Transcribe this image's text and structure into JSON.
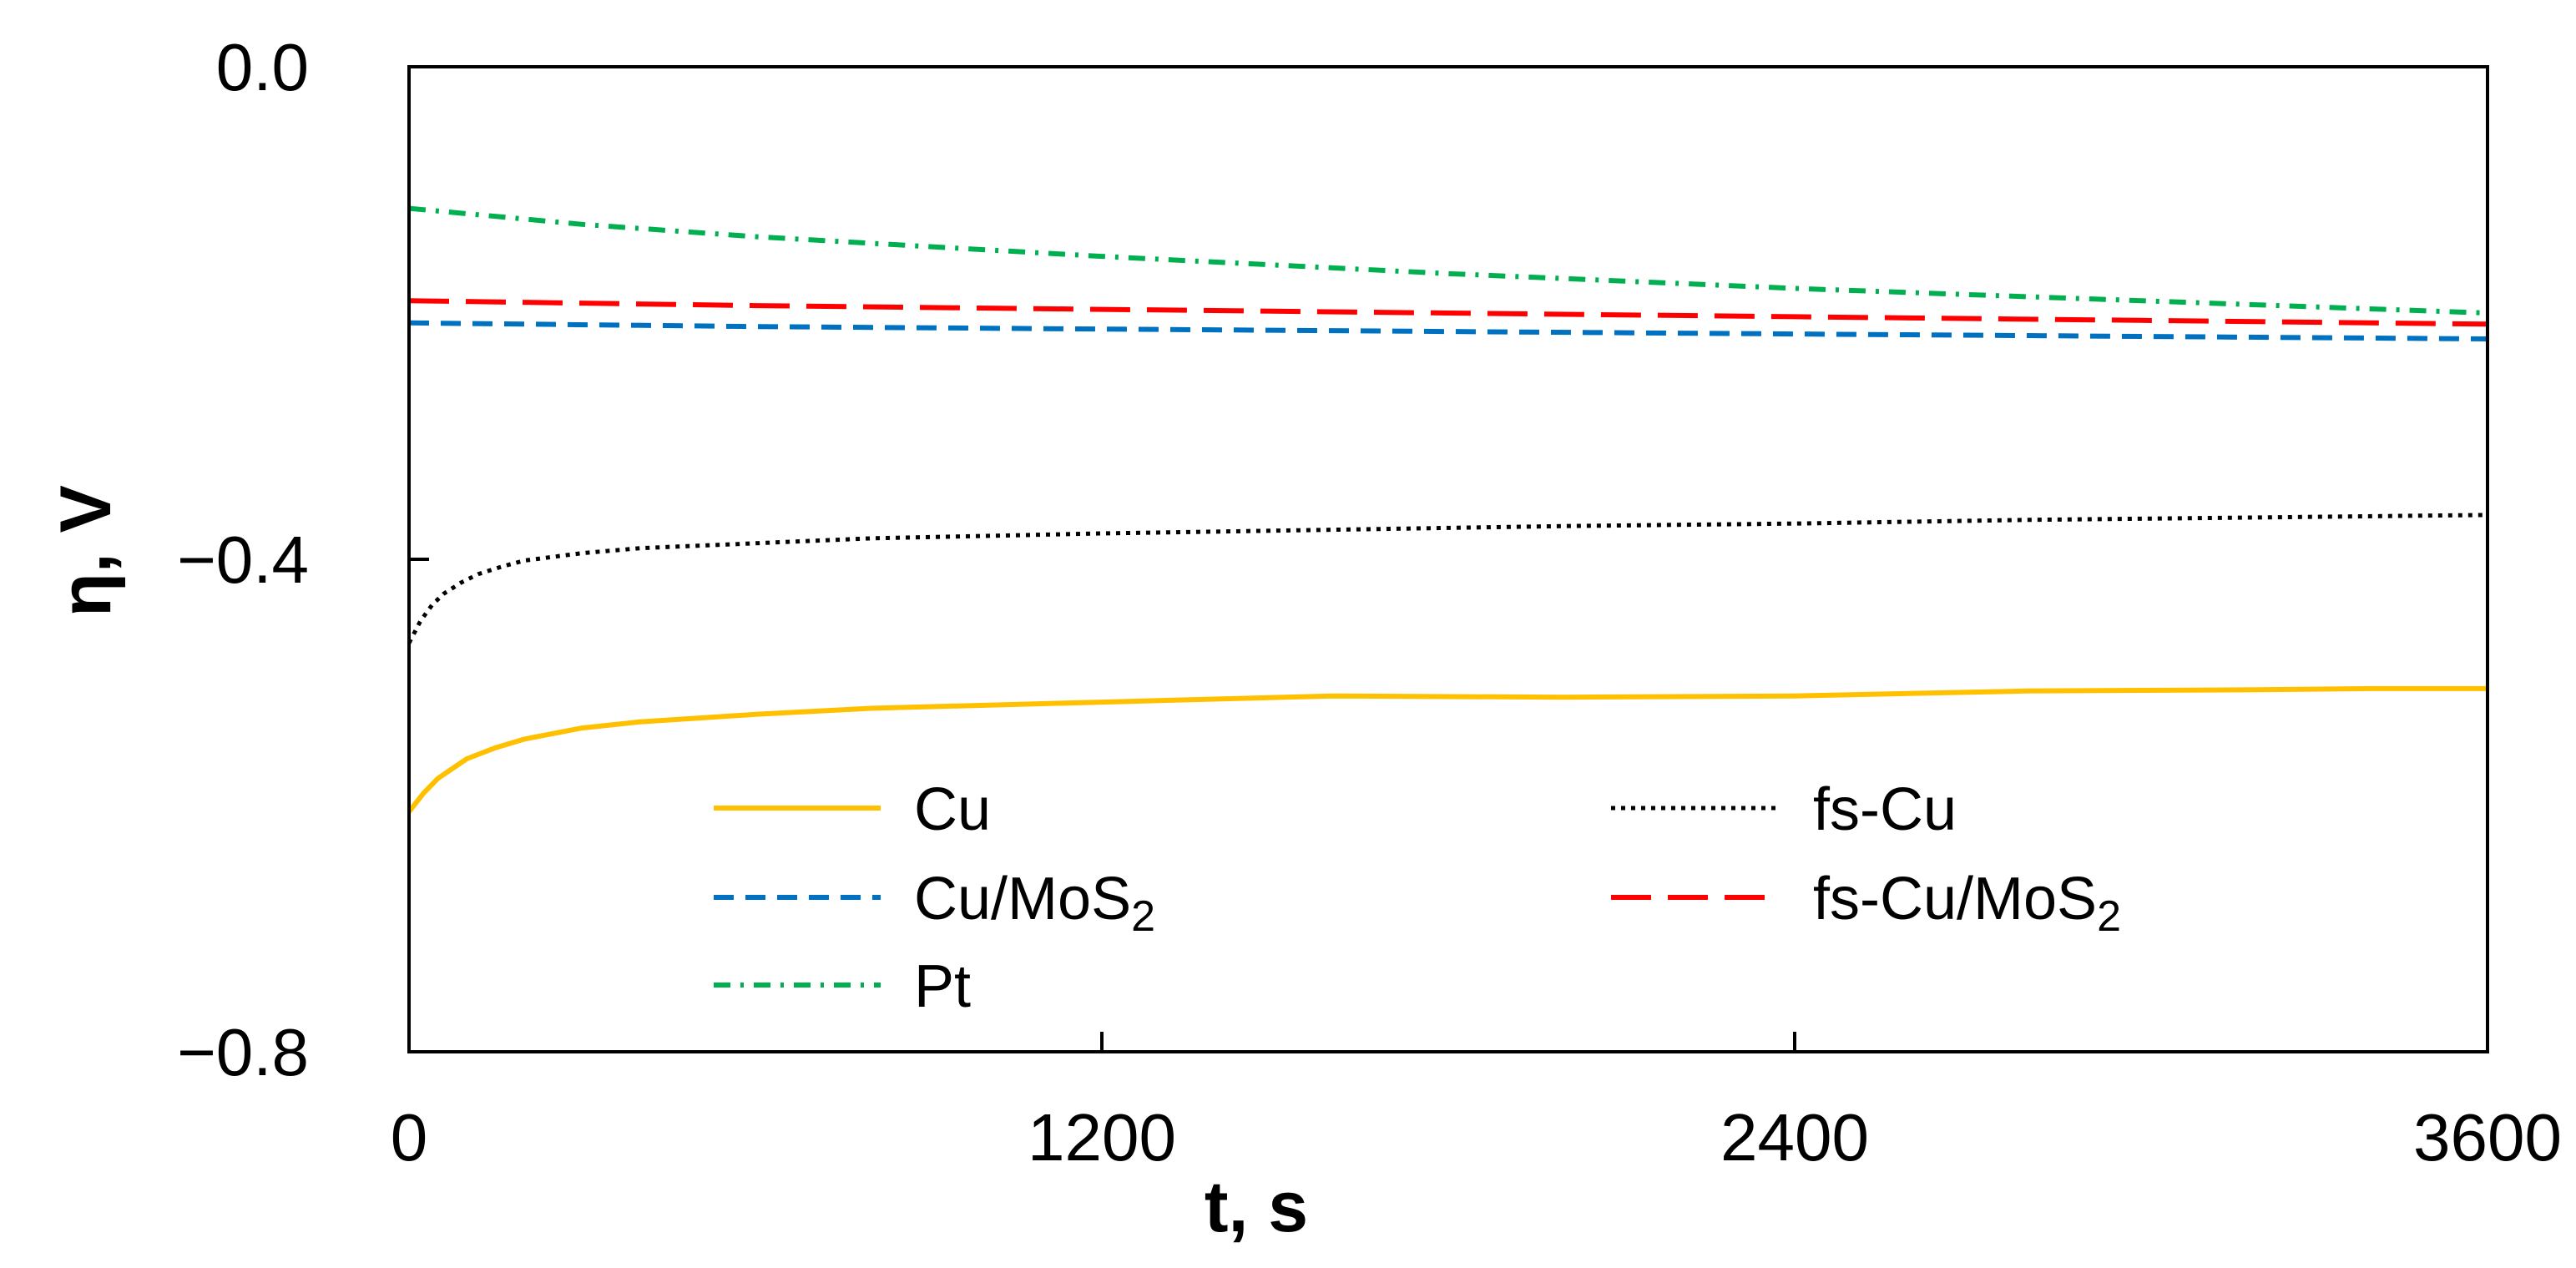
{
  "chart_data": {
    "type": "line",
    "title": "",
    "xlabel": "t, s",
    "ylabel": "η, V",
    "xlim": [
      0,
      3600
    ],
    "ylim": [
      -0.8,
      0.0
    ],
    "xticks": [
      {
        "value": 0,
        "label": "0"
      },
      {
        "value": 1200,
        "label": "1200"
      },
      {
        "value": 2400,
        "label": "2400"
      },
      {
        "value": 3600,
        "label": "3600"
      }
    ],
    "yticks": [
      {
        "value": 0.0,
        "label": "0.0"
      },
      {
        "value": -0.4,
        "label": "−0.4"
      },
      {
        "value": -0.8,
        "label": "−0.8"
      }
    ],
    "grid": false,
    "legend_position": "bottom",
    "series": [
      {
        "name": "Cu",
        "label_main": "Cu",
        "label_sub": "",
        "color": "#FFC000",
        "style": "solid",
        "x": [
          0,
          25,
          50,
          100,
          150,
          200,
          300,
          400,
          600,
          800,
          1200,
          1600,
          2000,
          2400,
          2800,
          3200,
          3400,
          3600
        ],
        "y": [
          -0.605,
          -0.59,
          -0.578,
          -0.562,
          -0.553,
          -0.546,
          -0.537,
          -0.532,
          -0.526,
          -0.521,
          -0.516,
          -0.511,
          -0.512,
          -0.511,
          -0.507,
          -0.506,
          -0.505,
          -0.505
        ]
      },
      {
        "name": "Cu/MoS2",
        "label_main": "Cu/MoS",
        "label_sub": "2",
        "color": "#0070C0",
        "style": "dashed",
        "x": [
          0,
          600,
          1200,
          1800,
          2400,
          3000,
          3600
        ],
        "y": [
          -0.208,
          -0.211,
          -0.213,
          -0.215,
          -0.217,
          -0.219,
          -0.221
        ]
      },
      {
        "name": "Pt",
        "label_main": "Pt",
        "label_sub": "",
        "color": "#00B050",
        "style": "dashdot",
        "x": [
          0,
          300,
          600,
          900,
          1200,
          1500,
          1800,
          2100,
          2400,
          2700,
          3000,
          3300,
          3600
        ],
        "y": [
          -0.115,
          -0.128,
          -0.138,
          -0.146,
          -0.154,
          -0.161,
          -0.168,
          -0.174,
          -0.18,
          -0.185,
          -0.19,
          -0.195,
          -0.2
        ]
      },
      {
        "name": "fs-Cu",
        "label_main": "fs-Cu",
        "label_sub": "",
        "color": "#000000",
        "style": "dotted",
        "x": [
          0,
          20,
          40,
          60,
          90,
          120,
          160,
          200,
          300,
          400,
          600,
          800,
          1200,
          1600,
          2000,
          2400,
          2800,
          3200,
          3600
        ],
        "y": [
          -0.468,
          -0.45,
          -0.437,
          -0.428,
          -0.419,
          -0.412,
          -0.406,
          -0.401,
          -0.395,
          -0.391,
          -0.387,
          -0.383,
          -0.379,
          -0.376,
          -0.373,
          -0.371,
          -0.368,
          -0.366,
          -0.364
        ]
      },
      {
        "name": "fs-Cu/MoS2",
        "label_main": "fs-Cu/MoS",
        "label_sub": "2",
        "color": "#FF0000",
        "style": "longdash",
        "x": [
          0,
          600,
          1200,
          1800,
          2400,
          3000,
          3600
        ],
        "y": [
          -0.19,
          -0.194,
          -0.197,
          -0.2,
          -0.203,
          -0.206,
          -0.209
        ]
      }
    ]
  }
}
